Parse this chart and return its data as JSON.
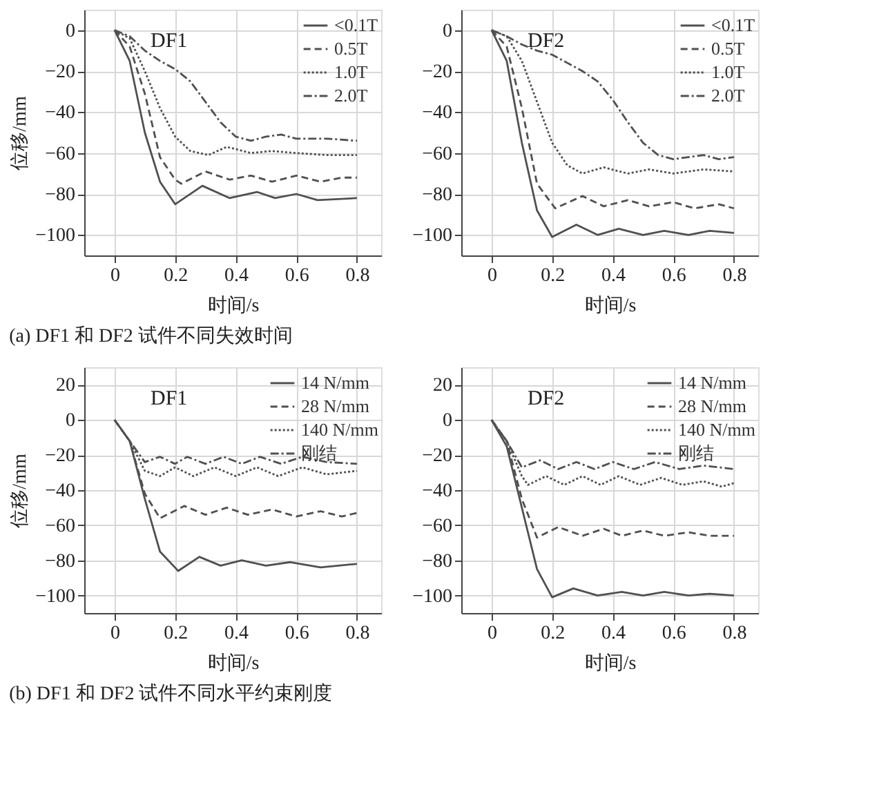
{
  "chart_data": [
    {
      "type": "line",
      "xlabel": "时间/s",
      "ylabel": "位移/mm",
      "xlim": [
        -0.1,
        0.88
      ],
      "ylim": [
        -110,
        10
      ],
      "xticks": [
        0,
        0.2,
        0.4,
        0.6,
        0.8
      ],
      "yticks": [
        0,
        -20,
        -40,
        -60,
        -80,
        -100
      ],
      "grid": true,
      "legend": "top right",
      "marker": "none",
      "annotations": [
        "DF1",
        "(a) DF1 和 DF2 试件不同失效时间"
      ],
      "series": [
        {
          "name": "<0.1T",
          "color": "#505050",
          "line_style": "solid",
          "x": [
            0,
            0.05,
            0.1,
            0.15,
            0.2,
            0.29,
            0.38,
            0.47,
            0.53,
            0.6,
            0.67,
            0.8
          ],
          "values": [
            0,
            -15,
            -50,
            -74,
            -85,
            -76,
            -82,
            -79,
            -82,
            -80,
            -83,
            -82
          ]
        },
        {
          "name": "0.5T",
          "color": "#505050",
          "line_style": "dashed",
          "x": [
            0,
            0.05,
            0.1,
            0.15,
            0.2,
            0.22,
            0.3,
            0.38,
            0.45,
            0.52,
            0.6,
            0.68,
            0.75,
            0.8
          ],
          "values": [
            0,
            -8,
            -31,
            -62,
            -73,
            -75,
            -69,
            -73,
            -71,
            -74,
            -71,
            -74,
            -72,
            -72
          ]
        },
        {
          "name": "1.0T",
          "color": "#505050",
          "line_style": "dotted",
          "x": [
            0,
            0.05,
            0.1,
            0.15,
            0.2,
            0.25,
            0.31,
            0.37,
            0.45,
            0.52,
            0.6,
            0.7,
            0.8
          ],
          "values": [
            0,
            -4,
            -20,
            -38,
            -52,
            -59,
            -61,
            -57,
            -60,
            -59,
            -60,
            -61,
            -61
          ]
        },
        {
          "name": "2.0T",
          "color": "#505050",
          "line_style": "dashdot",
          "x": [
            0,
            0.05,
            0.1,
            0.15,
            0.2,
            0.25,
            0.3,
            0.35,
            0.4,
            0.45,
            0.5,
            0.55,
            0.6,
            0.7,
            0.8
          ],
          "values": [
            0,
            -3,
            -10,
            -15,
            -19,
            -25,
            -35,
            -45,
            -52,
            -54,
            -52,
            -51,
            -53,
            -53,
            -54
          ]
        }
      ]
    },
    {
      "type": "line",
      "xlabel": "时间/s",
      "xlim": [
        -0.1,
        0.88
      ],
      "ylim": [
        -110,
        10
      ],
      "xticks": [
        0,
        0.2,
        0.4,
        0.6,
        0.8
      ],
      "yticks": [
        0,
        -20,
        -40,
        -60,
        -80,
        -100
      ],
      "grid": true,
      "legend": "top right",
      "marker": "none",
      "annotations": [
        "DF2"
      ],
      "series": [
        {
          "name": "<0.1T",
          "color": "#505050",
          "line_style": "solid",
          "x": [
            0,
            0.05,
            0.1,
            0.15,
            0.2,
            0.28,
            0.35,
            0.42,
            0.5,
            0.57,
            0.65,
            0.72,
            0.8
          ],
          "values": [
            0,
            -15,
            -55,
            -88,
            -101,
            -95,
            -100,
            -97,
            -100,
            -98,
            -100,
            -98,
            -99
          ]
        },
        {
          "name": "0.5T",
          "color": "#505050",
          "line_style": "dashed",
          "x": [
            0,
            0.05,
            0.1,
            0.15,
            0.21,
            0.3,
            0.37,
            0.45,
            0.52,
            0.6,
            0.67,
            0.75,
            0.8
          ],
          "values": [
            0,
            -8,
            -38,
            -75,
            -87,
            -81,
            -86,
            -83,
            -86,
            -84,
            -87,
            -85,
            -87
          ]
        },
        {
          "name": "1.0T",
          "color": "#505050",
          "line_style": "dotted",
          "x": [
            0,
            0.05,
            0.1,
            0.15,
            0.2,
            0.25,
            0.3,
            0.37,
            0.45,
            0.52,
            0.6,
            0.7,
            0.8
          ],
          "values": [
            0,
            -3,
            -15,
            -35,
            -55,
            -66,
            -70,
            -67,
            -70,
            -68,
            -70,
            -68,
            -69
          ]
        },
        {
          "name": "2.0T",
          "color": "#505050",
          "line_style": "dashdot",
          "x": [
            0,
            0.05,
            0.1,
            0.15,
            0.2,
            0.25,
            0.3,
            0.35,
            0.4,
            0.45,
            0.5,
            0.55,
            0.6,
            0.65,
            0.7,
            0.75,
            0.8
          ],
          "values": [
            0,
            -3,
            -7,
            -10,
            -12,
            -16,
            -20,
            -25,
            -34,
            -45,
            -55,
            -61,
            -63,
            -62,
            -61,
            -63,
            -62
          ]
        }
      ]
    },
    {
      "type": "line",
      "xlabel": "时间/s",
      "ylabel": "位移/mm",
      "xlim": [
        -0.1,
        0.88
      ],
      "ylim": [
        -110,
        30
      ],
      "xticks": [
        0,
        0.2,
        0.4,
        0.6,
        0.8
      ],
      "yticks": [
        20,
        0,
        -20,
        -40,
        -60,
        -80,
        -100
      ],
      "grid": true,
      "legend": "top right",
      "marker": "none",
      "annotations": [
        "DF1",
        "(b) DF1 和 DF2 试件不同水平约束刚度"
      ],
      "series": [
        {
          "name": "14 N/mm",
          "color": "#505050",
          "line_style": "solid",
          "x": [
            0,
            0.05,
            0.1,
            0.15,
            0.21,
            0.28,
            0.35,
            0.42,
            0.5,
            0.58,
            0.68,
            0.8
          ],
          "values": [
            0,
            -12,
            -45,
            -75,
            -86,
            -78,
            -83,
            -80,
            -83,
            -81,
            -84,
            -82
          ]
        },
        {
          "name": "28 N/mm",
          "color": "#505050",
          "line_style": "dashed",
          "x": [
            0,
            0.05,
            0.1,
            0.15,
            0.23,
            0.3,
            0.37,
            0.44,
            0.52,
            0.6,
            0.68,
            0.75,
            0.8
          ],
          "values": [
            0,
            -12,
            -42,
            -56,
            -49,
            -54,
            -50,
            -54,
            -51,
            -55,
            -52,
            -55,
            -53
          ]
        },
        {
          "name": "140 N/mm",
          "color": "#505050",
          "line_style": "dotted",
          "x": [
            0,
            0.05,
            0.1,
            0.15,
            0.2,
            0.26,
            0.33,
            0.4,
            0.47,
            0.54,
            0.62,
            0.7,
            0.8
          ],
          "values": [
            0,
            -12,
            -29,
            -32,
            -27,
            -32,
            -27,
            -32,
            -27,
            -32,
            -27,
            -31,
            -29
          ]
        },
        {
          "name": "刚结",
          "color": "#505050",
          "line_style": "dashdot",
          "x": [
            0,
            0.05,
            0.1,
            0.15,
            0.2,
            0.24,
            0.3,
            0.36,
            0.42,
            0.48,
            0.55,
            0.62,
            0.7,
            0.8
          ],
          "values": [
            0,
            -12,
            -24,
            -21,
            -25,
            -21,
            -25,
            -21,
            -25,
            -21,
            -25,
            -21,
            -24,
            -25
          ]
        }
      ]
    },
    {
      "type": "line",
      "xlabel": "时间/s",
      "xlim": [
        -0.1,
        0.88
      ],
      "ylim": [
        -110,
        30
      ],
      "xticks": [
        0,
        0.2,
        0.4,
        0.6,
        0.8
      ],
      "yticks": [
        20,
        0,
        -20,
        -40,
        -60,
        -80,
        -100
      ],
      "grid": true,
      "legend": "top right",
      "marker": "none",
      "annotations": [
        "DF2"
      ],
      "series": [
        {
          "name": "14 N/mm",
          "color": "#505050",
          "line_style": "solid",
          "x": [
            0,
            0.05,
            0.1,
            0.15,
            0.2,
            0.27,
            0.35,
            0.43,
            0.5,
            0.57,
            0.65,
            0.72,
            0.8
          ],
          "values": [
            0,
            -15,
            -50,
            -85,
            -101,
            -96,
            -100,
            -98,
            -100,
            -98,
            -100,
            -99,
            -100
          ]
        },
        {
          "name": "28 N/mm",
          "color": "#505050",
          "line_style": "dashed",
          "x": [
            0,
            0.05,
            0.1,
            0.15,
            0.22,
            0.3,
            0.37,
            0.43,
            0.5,
            0.57,
            0.65,
            0.72,
            0.8
          ],
          "values": [
            0,
            -12,
            -45,
            -67,
            -61,
            -66,
            -62,
            -66,
            -63,
            -66,
            -64,
            -66,
            -66
          ]
        },
        {
          "name": "140 N/mm",
          "color": "#505050",
          "line_style": "dotted",
          "x": [
            0,
            0.05,
            0.1,
            0.12,
            0.18,
            0.24,
            0.3,
            0.36,
            0.42,
            0.49,
            0.56,
            0.63,
            0.7,
            0.76,
            0.8
          ],
          "values": [
            0,
            -12,
            -32,
            -37,
            -32,
            -37,
            -32,
            -37,
            -32,
            -37,
            -33,
            -37,
            -35,
            -38,
            -36
          ]
        },
        {
          "name": "刚结",
          "color": "#505050",
          "line_style": "dashdot",
          "x": [
            0,
            0.05,
            0.1,
            0.16,
            0.22,
            0.28,
            0.34,
            0.4,
            0.47,
            0.54,
            0.62,
            0.7,
            0.8
          ],
          "values": [
            0,
            -12,
            -27,
            -23,
            -28,
            -24,
            -28,
            -24,
            -28,
            -24,
            -28,
            -26,
            -28
          ]
        }
      ]
    }
  ]
}
